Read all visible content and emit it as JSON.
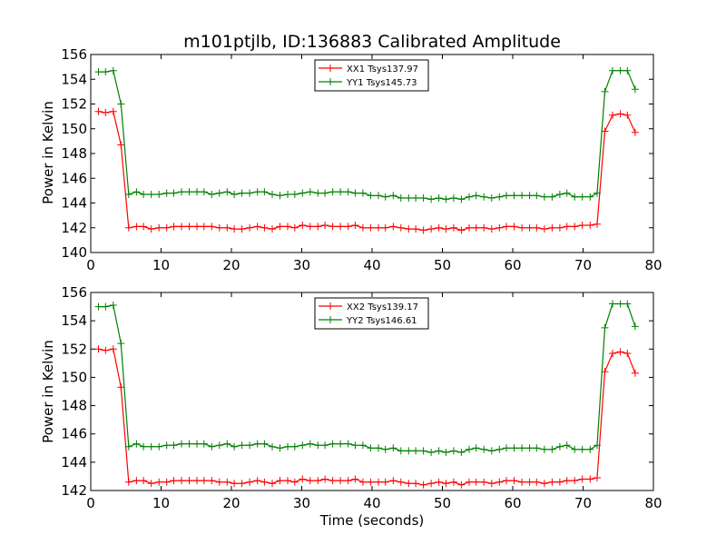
{
  "chart_data": [
    {
      "type": "line",
      "title": "m101ptjlb, ID:136883 Calibrated Amplitude",
      "xlabel": "",
      "ylabel": "Power in Kelvin",
      "xlim": [
        0,
        80
      ],
      "ylim": [
        140,
        156
      ],
      "xticks": [
        0,
        10,
        20,
        30,
        40,
        50,
        60,
        70,
        80
      ],
      "yticks": [
        140,
        142,
        144,
        146,
        148,
        150,
        152,
        154,
        156
      ],
      "grid": false,
      "legend_position": "top-center",
      "x": [
        1.1,
        2.1,
        3.2,
        4.3,
        5.4,
        6.5,
        7.5,
        8.6,
        9.7,
        10.8,
        11.8,
        12.9,
        14.0,
        15.1,
        16.1,
        17.2,
        18.3,
        19.4,
        20.4,
        21.5,
        22.6,
        23.7,
        24.7,
        25.8,
        26.9,
        28.0,
        29.0,
        30.1,
        31.2,
        32.3,
        33.3,
        34.4,
        35.5,
        36.6,
        37.6,
        38.7,
        39.8,
        40.9,
        41.9,
        43.0,
        44.1,
        45.2,
        46.2,
        47.3,
        48.4,
        49.5,
        50.5,
        51.6,
        52.7,
        53.8,
        54.8,
        55.9,
        57.0,
        58.1,
        59.1,
        60.2,
        61.3,
        62.4,
        63.4,
        64.5,
        65.6,
        66.7,
        67.7,
        68.8,
        69.9,
        71.0,
        72.0,
        73.1,
        74.2,
        75.3,
        76.3,
        77.4
      ],
      "series": [
        {
          "name": "XX1 Tsys137.97",
          "color": "#ff0000",
          "values": [
            151.4,
            151.3,
            151.4,
            148.7,
            142.0,
            142.1,
            142.1,
            141.9,
            142.0,
            142.0,
            142.1,
            142.1,
            142.1,
            142.1,
            142.1,
            142.1,
            142.0,
            142.0,
            141.9,
            141.9,
            142.0,
            142.1,
            142.0,
            141.9,
            142.1,
            142.1,
            142.0,
            142.2,
            142.1,
            142.1,
            142.2,
            142.1,
            142.1,
            142.1,
            142.2,
            142.0,
            142.0,
            142.0,
            142.0,
            142.1,
            142.0,
            141.9,
            141.9,
            141.8,
            141.9,
            142.0,
            141.9,
            142.0,
            141.8,
            142.0,
            142.0,
            142.0,
            141.9,
            142.0,
            142.1,
            142.1,
            142.0,
            142.0,
            142.0,
            141.9,
            142.0,
            142.0,
            142.1,
            142.1,
            142.2,
            142.2,
            142.3,
            149.8,
            151.1,
            151.2,
            151.1,
            149.7
          ]
        },
        {
          "name": "YY1 Tsys145.73",
          "color": "#008000",
          "values": [
            154.6,
            154.6,
            154.7,
            152.0,
            144.7,
            144.9,
            144.7,
            144.7,
            144.7,
            144.8,
            144.8,
            144.9,
            144.9,
            144.9,
            144.9,
            144.7,
            144.8,
            144.9,
            144.7,
            144.8,
            144.8,
            144.9,
            144.9,
            144.7,
            144.6,
            144.7,
            144.7,
            144.8,
            144.9,
            144.8,
            144.8,
            144.9,
            144.9,
            144.9,
            144.8,
            144.8,
            144.6,
            144.6,
            144.5,
            144.6,
            144.4,
            144.4,
            144.4,
            144.4,
            144.3,
            144.4,
            144.3,
            144.4,
            144.3,
            144.5,
            144.6,
            144.5,
            144.4,
            144.5,
            144.6,
            144.6,
            144.6,
            144.6,
            144.6,
            144.5,
            144.5,
            144.7,
            144.8,
            144.5,
            144.5,
            144.5,
            144.8,
            153.0,
            154.7,
            154.7,
            154.7,
            153.2
          ]
        }
      ]
    },
    {
      "type": "line",
      "title": "",
      "xlabel": "Time (seconds)",
      "ylabel": "Power in Kelvin",
      "xlim": [
        0,
        80
      ],
      "ylim": [
        142,
        156
      ],
      "xticks": [
        0,
        10,
        20,
        30,
        40,
        50,
        60,
        70,
        80
      ],
      "yticks": [
        142,
        144,
        146,
        148,
        150,
        152,
        154,
        156
      ],
      "grid": false,
      "legend_position": "top-center",
      "x": [
        1.1,
        2.1,
        3.2,
        4.3,
        5.4,
        6.5,
        7.5,
        8.6,
        9.7,
        10.8,
        11.8,
        12.9,
        14.0,
        15.1,
        16.1,
        17.2,
        18.3,
        19.4,
        20.4,
        21.5,
        22.6,
        23.7,
        24.7,
        25.8,
        26.9,
        28.0,
        29.0,
        30.1,
        31.2,
        32.3,
        33.3,
        34.4,
        35.5,
        36.6,
        37.6,
        38.7,
        39.8,
        40.9,
        41.9,
        43.0,
        44.1,
        45.2,
        46.2,
        47.3,
        48.4,
        49.5,
        50.5,
        51.6,
        52.7,
        53.8,
        54.8,
        55.9,
        57.0,
        58.1,
        59.1,
        60.2,
        61.3,
        62.4,
        63.4,
        64.5,
        65.6,
        66.7,
        67.7,
        68.8,
        69.9,
        71.0,
        72.0,
        73.1,
        74.2,
        75.3,
        76.3,
        77.4
      ],
      "series": [
        {
          "name": "XX2 Tsys139.17",
          "color": "#ff0000",
          "values": [
            152.0,
            151.9,
            152.0,
            149.3,
            142.6,
            142.7,
            142.7,
            142.5,
            142.6,
            142.6,
            142.7,
            142.7,
            142.7,
            142.7,
            142.7,
            142.7,
            142.6,
            142.6,
            142.5,
            142.5,
            142.6,
            142.7,
            142.6,
            142.5,
            142.7,
            142.7,
            142.6,
            142.8,
            142.7,
            142.7,
            142.8,
            142.7,
            142.7,
            142.7,
            142.8,
            142.6,
            142.6,
            142.6,
            142.6,
            142.7,
            142.6,
            142.5,
            142.5,
            142.4,
            142.5,
            142.6,
            142.5,
            142.6,
            142.4,
            142.6,
            142.6,
            142.6,
            142.5,
            142.6,
            142.7,
            142.7,
            142.6,
            142.6,
            142.6,
            142.5,
            142.6,
            142.6,
            142.7,
            142.7,
            142.8,
            142.8,
            142.9,
            150.4,
            151.7,
            151.8,
            151.7,
            150.3
          ]
        },
        {
          "name": "YY2 Tsys146.61",
          "color": "#008000",
          "values": [
            155.0,
            155.0,
            155.1,
            152.4,
            145.1,
            145.3,
            145.1,
            145.1,
            145.1,
            145.2,
            145.2,
            145.3,
            145.3,
            145.3,
            145.3,
            145.1,
            145.2,
            145.3,
            145.1,
            145.2,
            145.2,
            145.3,
            145.3,
            145.1,
            145.0,
            145.1,
            145.1,
            145.2,
            145.3,
            145.2,
            145.2,
            145.3,
            145.3,
            145.3,
            145.2,
            145.2,
            145.0,
            145.0,
            144.9,
            145.0,
            144.8,
            144.8,
            144.8,
            144.8,
            144.7,
            144.8,
            144.7,
            144.8,
            144.7,
            144.9,
            145.0,
            144.9,
            144.8,
            144.9,
            145.0,
            145.0,
            145.0,
            145.0,
            145.0,
            144.9,
            144.9,
            145.1,
            145.2,
            144.9,
            144.9,
            144.9,
            145.2,
            153.5,
            155.2,
            155.2,
            155.2,
            153.6
          ]
        }
      ]
    }
  ]
}
